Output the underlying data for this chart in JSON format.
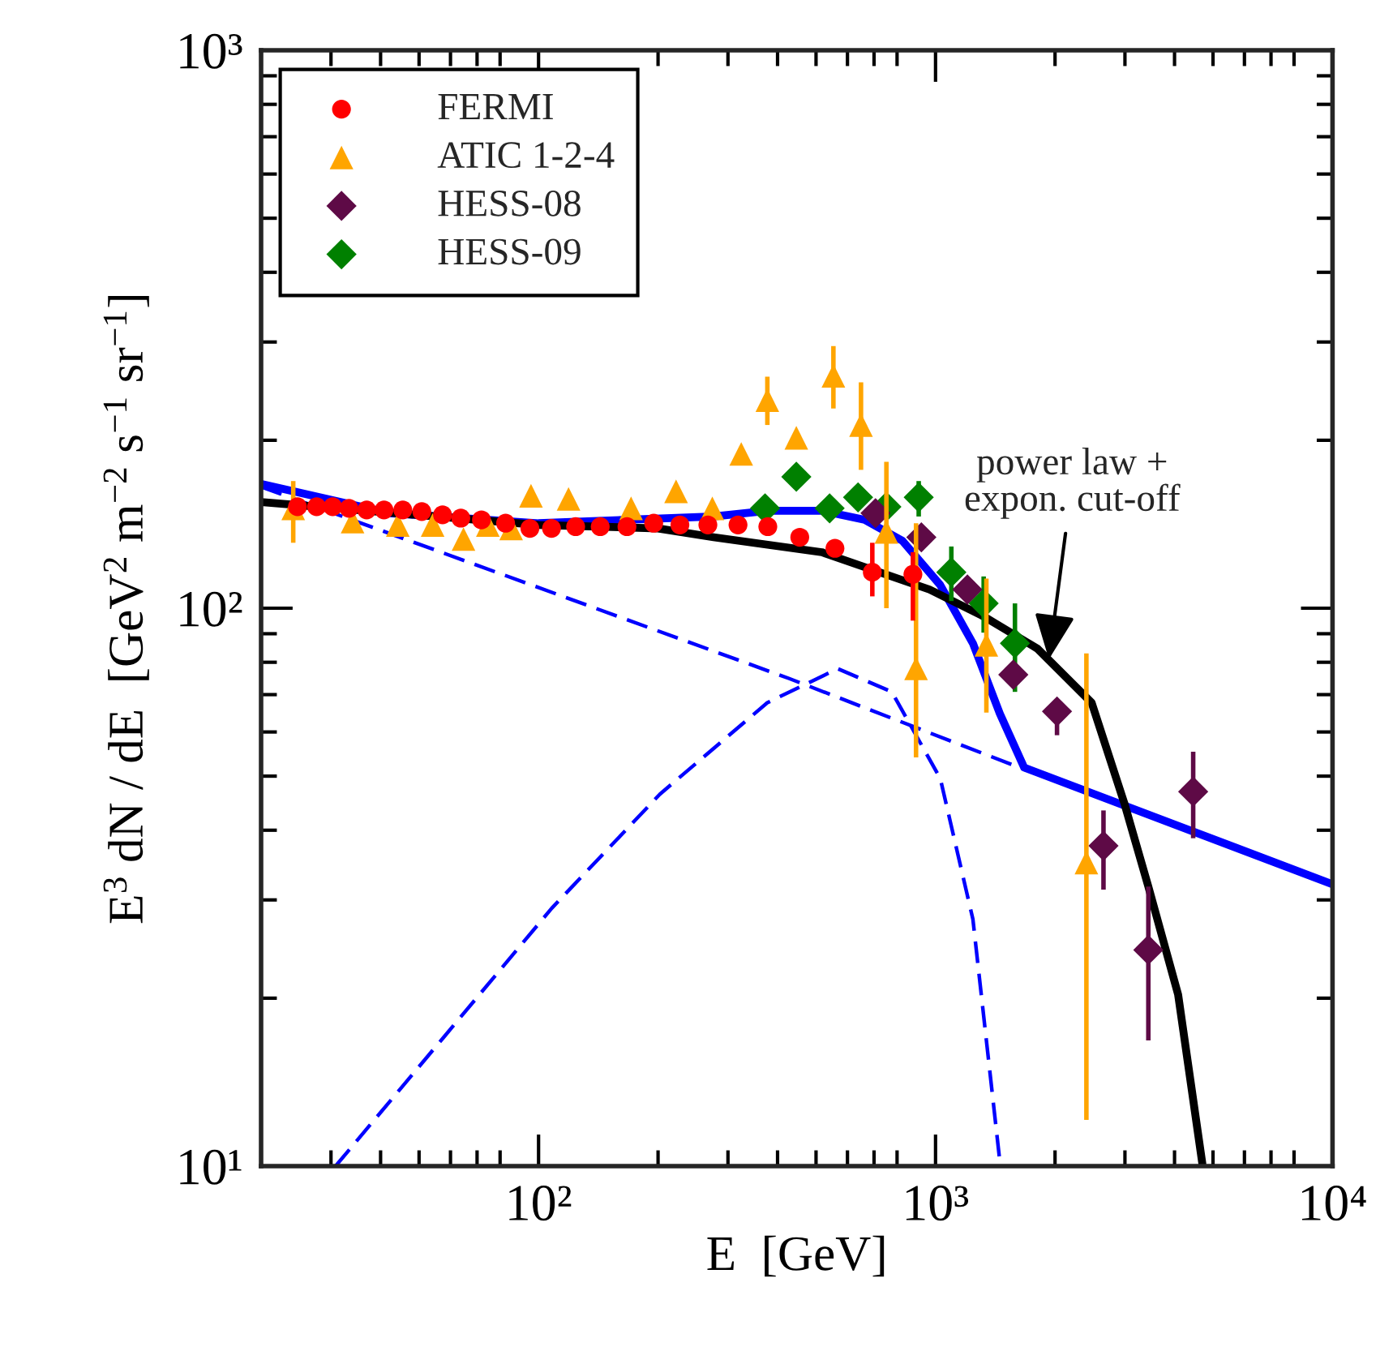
{
  "chart_data": {
    "type": "scatter",
    "xlabel": "E  [GeV]",
    "ylabel": "E$^{3}$ dN / dE  [GeV$^{2}$ m$^{−2}$ s$^{−1}$ sr$^{−1}$]",
    "log": "xy",
    "xlim": [
      20,
      10000
    ],
    "ylim": [
      10,
      1000
    ],
    "xticks": [
      {
        "value": 100,
        "label": "10²"
      },
      {
        "value": 1000,
        "label": "10³"
      },
      {
        "value": 10000,
        "label": "10⁴"
      }
    ],
    "yticks": [
      {
        "value": 10,
        "label": "10¹"
      },
      {
        "value": 100,
        "label": "10²"
      },
      {
        "value": 1000,
        "label": "10³"
      }
    ],
    "legend": "top left",
    "annotations": [
      {
        "text": "power law +\nexpon. cut-off",
        "x": 1930,
        "y": 81
      }
    ],
    "series": [
      {
        "type": "line",
        "color": "#0000ff",
        "line_style": "dashed",
        "marker": "none",
        "x": [
          20,
          428,
          1698
        ],
        "values": [
          165,
          74.8,
          51.2
        ]
      },
      {
        "type": "line",
        "color": "#0000ff",
        "line_style": "dashed",
        "marker": "none",
        "x": [
          30.8,
          57.6,
          108,
          202,
          377,
          567,
          776,
          1028,
          1242,
          1452
        ],
        "values": [
          10.0,
          17.0,
          29.0,
          46.4,
          67.7,
          77.9,
          70.8,
          49.5,
          27.7,
          10.2
        ]
      },
      {
        "type": "line",
        "color": "#0000ff",
        "line_style": "solid",
        "marker": "none",
        "x": [
          20,
          42.1,
          100,
          276,
          378,
          517,
          663,
          826,
          1028,
          1242,
          1452,
          1672,
          10000
        ],
        "values": [
          167,
          148,
          142,
          146,
          149.5,
          149.5,
          144,
          132,
          110,
          86.5,
          64.7,
          51.8,
          32.0
        ]
      },
      {
        "type": "line",
        "color": "#000000",
        "line_style": "solid",
        "marker": "none",
        "x": [
          20,
          100,
          200,
          276,
          517,
          966,
          1321,
          1807,
          2473,
          2987,
          3436,
          4084,
          4700
        ],
        "values": [
          155,
          141,
          139,
          134,
          126,
          108,
          96.7,
          84.6,
          67.7,
          44.8,
          31.7,
          20.3,
          10.1
        ]
      },
      {
        "name": "FERMI",
        "color": "#ff0000",
        "marker": "circle",
        "x": [
          24.7,
          27.6,
          30.3,
          33.3,
          36.9,
          40.8,
          45.5,
          50.8,
          57.3,
          63.7,
          71.8,
          82.6,
          95.1,
          107.8,
          124,
          143,
          167,
          195,
          227,
          267,
          318,
          378,
          455,
          558,
          693,
          877
        ],
        "values": [
          152,
          152,
          152,
          151,
          150,
          150,
          150,
          149,
          147,
          145,
          144,
          142,
          139,
          139,
          140,
          140,
          140,
          142,
          141,
          141,
          141,
          140,
          134,
          128,
          116,
          115
        ],
        "errors": [
          null,
          null,
          null,
          null,
          null,
          null,
          null,
          null,
          null,
          null,
          null,
          null,
          null,
          null,
          null,
          null,
          null,
          null,
          null,
          null,
          null,
          null,
          null,
          null,
          [
            105,
            131
          ],
          [
            95,
            126
          ]
        ]
      },
      {
        "name": "ATIC 1-2-4",
        "color": "#ffa500",
        "marker": "triangle",
        "x": [
          24.1,
          34.0,
          44.2,
          54.1,
          64.7,
          74.5,
          85.3,
          95.7,
          119,
          171,
          222,
          274,
          324,
          377,
          446,
          553,
          649,
          752,
          893,
          1343,
          2399
        ],
        "values": [
          151,
          143,
          141,
          141,
          133,
          141,
          139,
          159,
          157,
          151,
          162,
          151,
          189,
          236,
          202,
          261,
          213,
          137,
          78,
          86,
          35
        ],
        "errors": [
          [
            131,
            169
          ],
          null,
          null,
          null,
          null,
          null,
          null,
          null,
          null,
          null,
          null,
          null,
          null,
          [
            213,
            260
          ],
          null,
          [
            228,
            295
          ],
          [
            177,
            254
          ],
          [
            100,
            183
          ],
          [
            54,
            142
          ],
          [
            65,
            113
          ],
          [
            12.1,
            83
          ]
        ]
      },
      {
        "name": "HESS-08",
        "color": "#5e0a46",
        "marker": "diamond",
        "x": [
          706,
          921,
          1203,
          1570,
          2023,
          2649,
          3436,
          4457
        ],
        "values": [
          148,
          134,
          108,
          76,
          65.3,
          37.5,
          24.4,
          46.9
        ],
        "errors": [
          null,
          null,
          null,
          null,
          [
            59.2,
            68.4
          ],
          [
            31.3,
            43.4
          ],
          [
            16.8,
            31.7
          ],
          [
            38.7,
            55.3
          ]
        ]
      },
      {
        "name": "HESS-09",
        "color": "#008000",
        "marker": "diamond",
        "x": [
          372,
          446,
          541,
          638,
          752,
          907,
          1096,
          1322,
          1585
        ],
        "values": [
          151,
          172,
          151,
          158,
          152,
          158,
          116,
          102,
          86.5
        ],
        "errors": [
          null,
          null,
          null,
          null,
          null,
          [
            146,
            169
          ],
          [
            103,
            129
          ],
          [
            90.4,
            114
          ],
          [
            70.8,
            102
          ]
        ]
      }
    ]
  }
}
